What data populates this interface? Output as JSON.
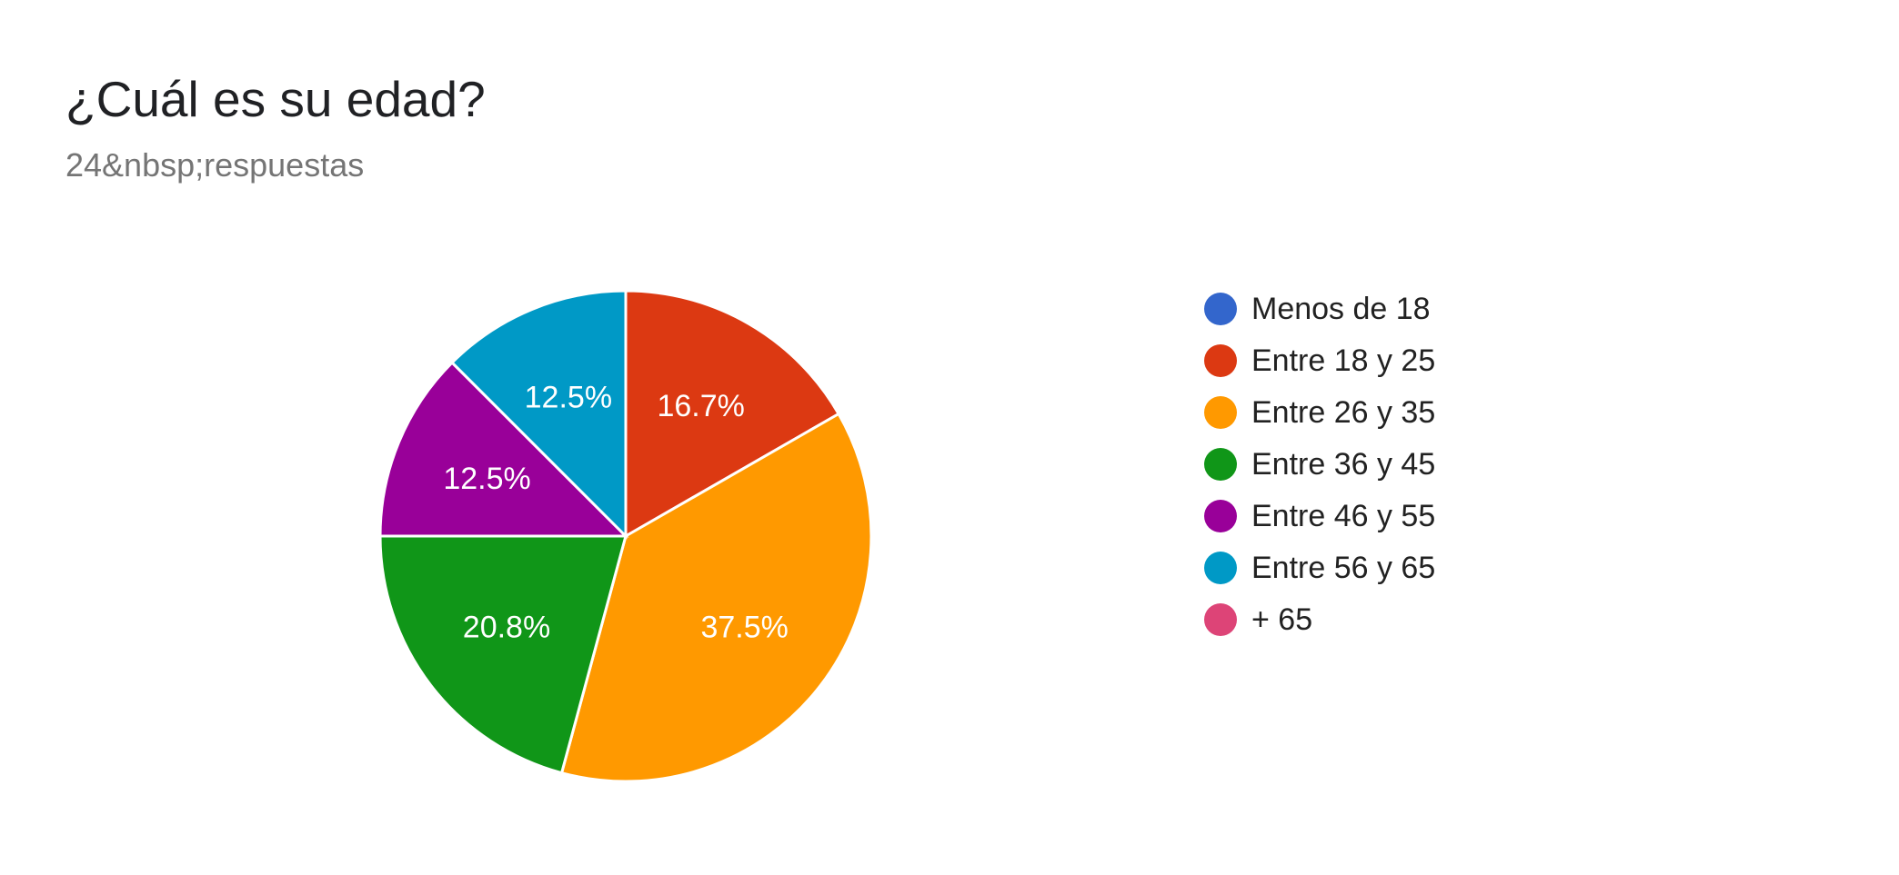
{
  "header": {
    "title": "¿Cuál es su edad?",
    "subtitle": "24&nbsp;respuestas"
  },
  "chart_data": {
    "type": "pie",
    "title": "¿Cuál es su edad?",
    "subtitle": "24&nbsp;respuestas",
    "legend_position": "right",
    "slices": [
      {
        "label": "Menos de 18",
        "value": 0,
        "percent_label": "",
        "color": "#3366cc"
      },
      {
        "label": "Entre 18 y 25",
        "value": 16.7,
        "percent_label": "16.7%",
        "color": "#dc3912"
      },
      {
        "label": "Entre 26 y 35",
        "value": 37.5,
        "percent_label": "37.5%",
        "color": "#ff9900"
      },
      {
        "label": "Entre 36 y 45",
        "value": 20.8,
        "percent_label": "20.8%",
        "color": "#109618"
      },
      {
        "label": "Entre 46 y 55",
        "value": 12.5,
        "percent_label": "12.5%",
        "color": "#990099"
      },
      {
        "label": "Entre 56 y 65",
        "value": 12.5,
        "percent_label": "12.5%",
        "color": "#0099c6"
      },
      {
        "label": "+ 65",
        "value": 0,
        "percent_label": "",
        "color": "#dd4477"
      }
    ]
  }
}
